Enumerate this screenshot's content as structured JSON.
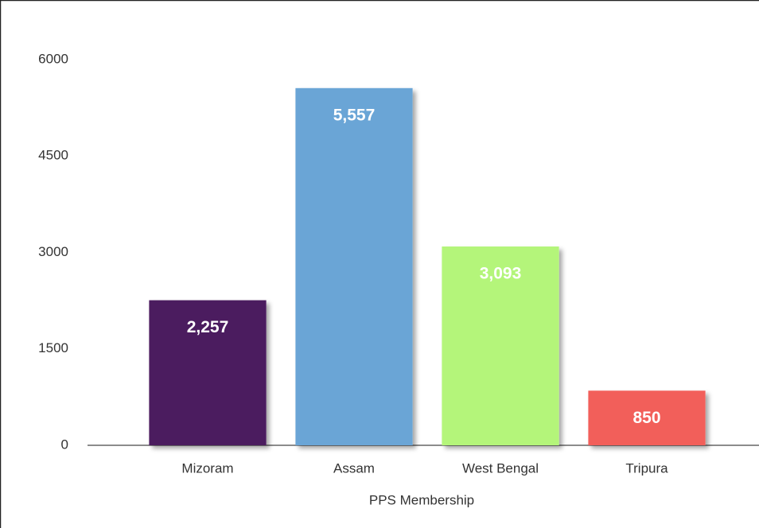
{
  "chart_data": {
    "type": "bar",
    "x_label": "PPS Membership",
    "categories": [
      "Mizoram",
      "Assam",
      "West Bengal",
      "Tripura"
    ],
    "values": [
      2257,
      5557,
      3093,
      850
    ],
    "value_labels": [
      "2,257",
      "5,557",
      "3,093",
      "850"
    ],
    "colors": [
      "#4b1a5e",
      "#6aa5d6",
      "#b4f57a",
      "#f25f5a"
    ],
    "ylim": [
      0,
      6000
    ],
    "yticks": [
      0,
      1500,
      3000,
      4500,
      6000
    ],
    "grid": false
  }
}
